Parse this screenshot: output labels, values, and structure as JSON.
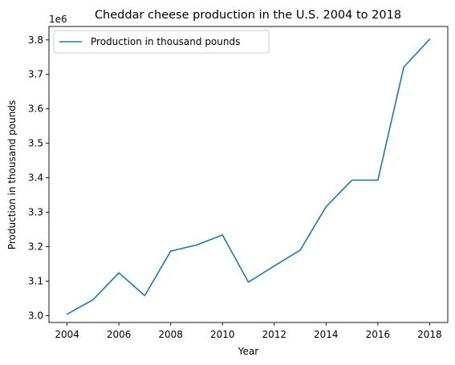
{
  "chart_data": {
    "type": "line",
    "title": "Cheddar cheese production in the U.S. 2004 to 2018",
    "xlabel": "Year",
    "ylabel": "Production in thousand pounds",
    "y_offset_label": "1e6",
    "xlim": [
      2003.3,
      2018.7
    ],
    "ylim": [
      2.98,
      3.839
    ],
    "x_ticks": [
      2004,
      2006,
      2008,
      2010,
      2012,
      2014,
      2016,
      2018
    ],
    "y_ticks": [
      3.0,
      3.1,
      3.2,
      3.3,
      3.4,
      3.5,
      3.6,
      3.7,
      3.8
    ],
    "y_tick_labels": [
      "3.0",
      "3.1",
      "3.2",
      "3.3",
      "3.4",
      "3.5",
      "3.6",
      "3.7",
      "3.8"
    ],
    "legend_position": "top-left",
    "series": [
      {
        "name": "Production in thousand pounds",
        "color": "#1f77b4",
        "x": [
          2004,
          2005,
          2006,
          2007,
          2008,
          2009,
          2010,
          2011,
          2012,
          2013,
          2014,
          2015,
          2016,
          2017,
          2018
        ],
        "values": [
          3004000,
          3046000,
          3124000,
          3058000,
          3187000,
          3205000,
          3234000,
          3097000,
          3144000,
          3190000,
          3316000,
          3393000,
          3393000,
          3721000,
          3802000
        ]
      }
    ]
  }
}
